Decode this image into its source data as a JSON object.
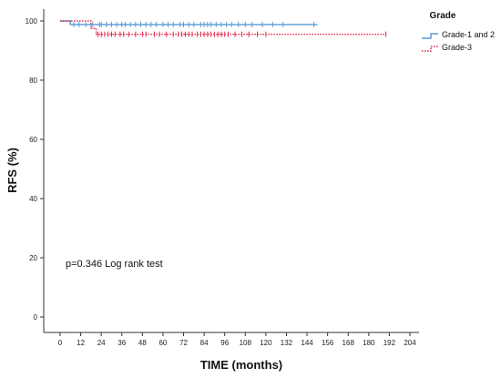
{
  "chart_data": {
    "type": "line",
    "xlabel": "TIME (months)",
    "ylabel": "RFS (%)",
    "xlim": [
      0,
      204
    ],
    "ylim": [
      0,
      100
    ],
    "xticks": [
      0,
      12,
      24,
      36,
      48,
      60,
      72,
      84,
      96,
      108,
      120,
      132,
      144,
      156,
      168,
      180,
      192,
      204
    ],
    "yticks": [
      0,
      20,
      40,
      60,
      80,
      100
    ],
    "grid": false,
    "legend_title": "Grade",
    "legend_position": "top-right",
    "annotation": "p=0.346 Log rank test",
    "series": [
      {
        "name": "Grade-1 and 2",
        "color": "#5b9bd5",
        "style": "solid",
        "steps": [
          [
            0,
            100
          ],
          [
            6,
            98.8
          ],
          [
            150,
            98.8
          ]
        ],
        "censor_times": [
          8,
          11,
          15,
          19,
          23,
          24,
          27,
          30,
          33,
          36,
          38,
          41,
          44,
          47,
          50,
          53,
          56,
          60,
          63,
          66,
          70,
          72,
          75,
          78,
          82,
          84,
          86,
          88,
          91,
          94,
          97,
          100,
          104,
          108,
          112,
          118,
          124,
          130,
          148
        ]
      },
      {
        "name": "Grade-3",
        "color": "#e8284a",
        "style": "dotted",
        "steps": [
          [
            0,
            100
          ],
          [
            18,
            97.5
          ],
          [
            21,
            95.5
          ],
          [
            190,
            95.5
          ]
        ],
        "censor_times": [
          22,
          24,
          26,
          28,
          30,
          32,
          35,
          37,
          40,
          44,
          48,
          50,
          55,
          58,
          62,
          66,
          69,
          71,
          73,
          75,
          77,
          80,
          82,
          84,
          86,
          88,
          90,
          92,
          94,
          96,
          98,
          102,
          106,
          110,
          115,
          120,
          190
        ]
      }
    ]
  }
}
